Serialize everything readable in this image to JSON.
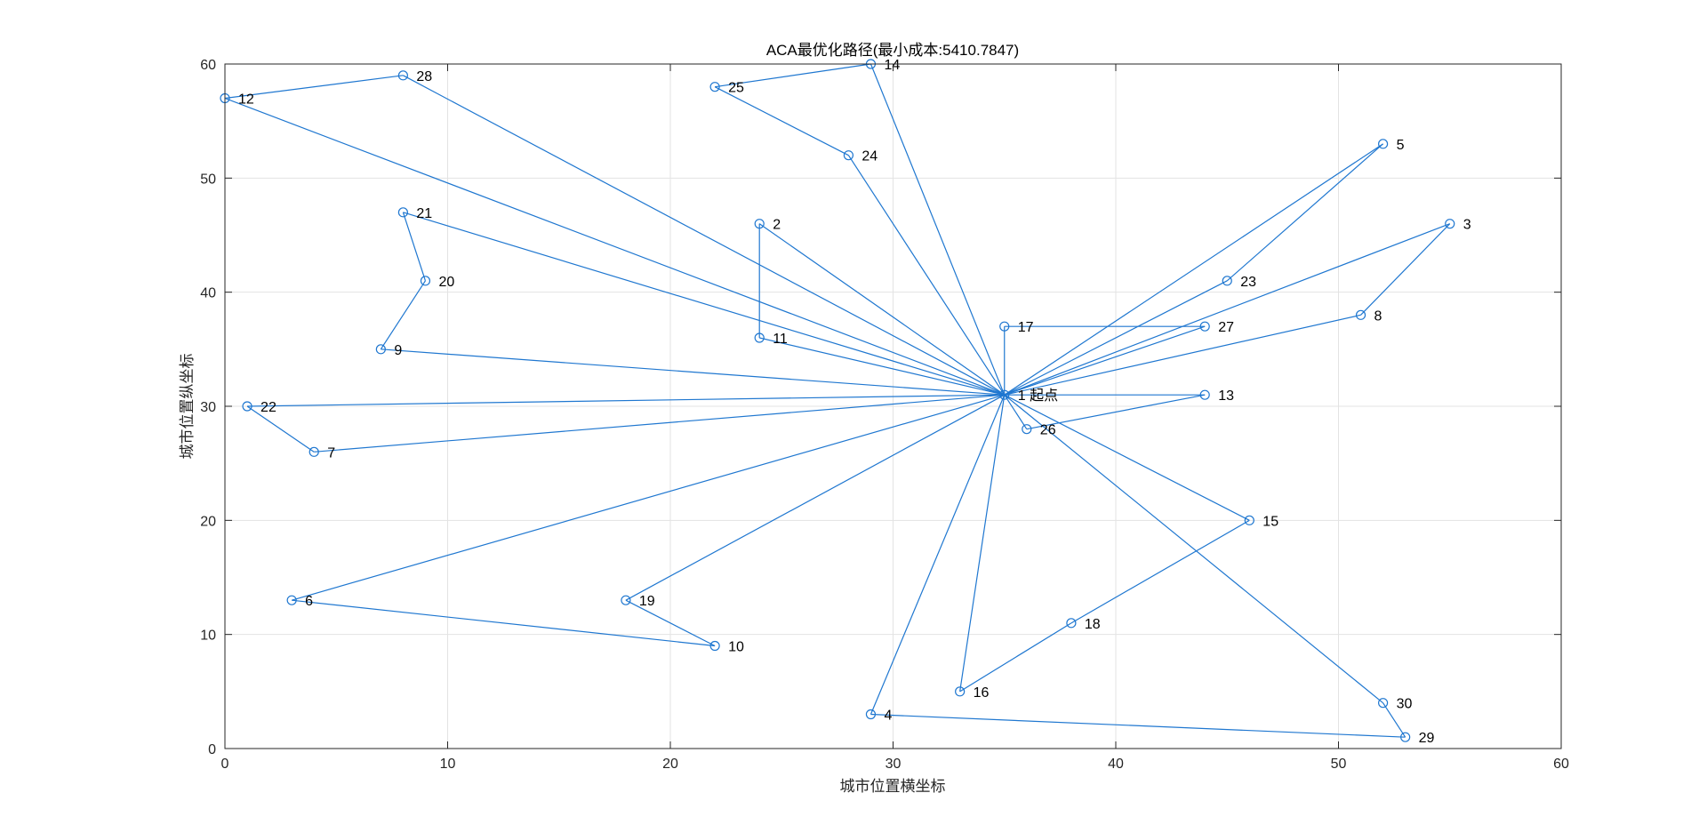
{
  "chart_data": {
    "type": "line",
    "title": "ACA最优化路径(最小成本:5410.7847)",
    "xlabel": "城市位置横坐标",
    "ylabel": "城市位置纵坐标",
    "xlim": [
      0,
      60
    ],
    "ylim": [
      0,
      60
    ],
    "xticks": [
      0,
      10,
      20,
      30,
      40,
      50,
      60
    ],
    "yticks": [
      0,
      10,
      20,
      30,
      40,
      50,
      60
    ],
    "grid": true,
    "line_color": "#1f77d0",
    "start_city": 1,
    "start_label": "起点",
    "cities": [
      {
        "id": 1,
        "x": 35,
        "y": 31
      },
      {
        "id": 2,
        "x": 24,
        "y": 46
      },
      {
        "id": 3,
        "x": 55,
        "y": 46
      },
      {
        "id": 4,
        "x": 29,
        "y": 3
      },
      {
        "id": 5,
        "x": 52,
        "y": 53
      },
      {
        "id": 6,
        "x": 3,
        "y": 13
      },
      {
        "id": 7,
        "x": 4,
        "y": 26
      },
      {
        "id": 8,
        "x": 51,
        "y": 38
      },
      {
        "id": 9,
        "x": 7,
        "y": 35
      },
      {
        "id": 10,
        "x": 22,
        "y": 9
      },
      {
        "id": 11,
        "x": 24,
        "y": 36
      },
      {
        "id": 12,
        "x": 0,
        "y": 57
      },
      {
        "id": 13,
        "x": 44,
        "y": 31
      },
      {
        "id": 14,
        "x": 29,
        "y": 60
      },
      {
        "id": 15,
        "x": 46,
        "y": 20
      },
      {
        "id": 16,
        "x": 33,
        "y": 5
      },
      {
        "id": 17,
        "x": 35,
        "y": 37
      },
      {
        "id": 18,
        "x": 38,
        "y": 11
      },
      {
        "id": 19,
        "x": 18,
        "y": 13
      },
      {
        "id": 20,
        "x": 9,
        "y": 41
      },
      {
        "id": 21,
        "x": 8,
        "y": 47
      },
      {
        "id": 22,
        "x": 1,
        "y": 30
      },
      {
        "id": 23,
        "x": 45,
        "y": 41
      },
      {
        "id": 24,
        "x": 28,
        "y": 52
      },
      {
        "id": 25,
        "x": 22,
        "y": 58
      },
      {
        "id": 26,
        "x": 36,
        "y": 28
      },
      {
        "id": 27,
        "x": 44,
        "y": 37
      },
      {
        "id": 28,
        "x": 8,
        "y": 59
      },
      {
        "id": 29,
        "x": 53,
        "y": 1
      },
      {
        "id": 30,
        "x": 52,
        "y": 4
      }
    ],
    "segments": [
      [
        1,
        2
      ],
      [
        2,
        11
      ],
      [
        11,
        1
      ],
      [
        1,
        12
      ],
      [
        12,
        28
      ],
      [
        28,
        1
      ],
      [
        1,
        14
      ],
      [
        14,
        25
      ],
      [
        25,
        24
      ],
      [
        24,
        1
      ],
      [
        1,
        21
      ],
      [
        21,
        20
      ],
      [
        20,
        9
      ],
      [
        9,
        1
      ],
      [
        1,
        22
      ],
      [
        22,
        7
      ],
      [
        7,
        1
      ],
      [
        1,
        6
      ],
      [
        6,
        10
      ],
      [
        10,
        19
      ],
      [
        19,
        1
      ],
      [
        1,
        4
      ],
      [
        4,
        29
      ],
      [
        29,
        30
      ],
      [
        30,
        1
      ],
      [
        1,
        16
      ],
      [
        16,
        18
      ],
      [
        18,
        15
      ],
      [
        15,
        1
      ],
      [
        1,
        26
      ],
      [
        26,
        13
      ],
      [
        13,
        1
      ],
      [
        1,
        27
      ],
      [
        27,
        17
      ],
      [
        17,
        1
      ],
      [
        1,
        8
      ],
      [
        8,
        3
      ],
      [
        3,
        1
      ],
      [
        1,
        23
      ],
      [
        23,
        5
      ],
      [
        5,
        1
      ]
    ]
  }
}
